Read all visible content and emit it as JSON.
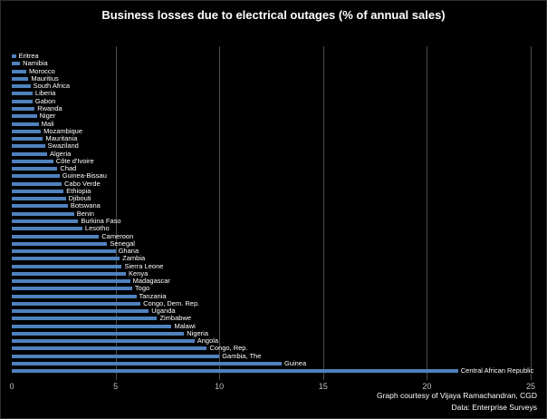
{
  "chart_data": {
    "type": "bar",
    "orientation": "horizontal",
    "title": "Business losses due to electrical outages (% of annual sales)",
    "categories": [
      "Eritrea",
      "Namibia",
      "Morocco",
      "Mauritius",
      "South Africa",
      "Liberia",
      "Gabon",
      "Rwanda",
      "Niger",
      "Mali",
      "Mozambique",
      "Mauritania",
      "Swaziland",
      "Algeria",
      "Côte d'Ivoire",
      "Chad",
      "Guinea-Bissau",
      "Cabo Verde",
      "Ethiopia",
      "Djibouti",
      "Botswana",
      "Benin",
      "Burkina Faso",
      "Lesotho",
      "Cameroon",
      "Senegal",
      "Ghana",
      "Zambia",
      "Sierra Leone",
      "Kenya",
      "Madagascar",
      "Togo",
      "Tanzania",
      "Congo, Dem. Rep.",
      "Uganda",
      "Zimbabwe",
      "Malawi",
      "Nigeria",
      "Angola",
      "Congo, Rep.",
      "Gambia, The",
      "Guinea",
      "Central African Republic"
    ],
    "values": [
      0.2,
      0.4,
      0.7,
      0.8,
      0.9,
      1.0,
      1.0,
      1.1,
      1.2,
      1.3,
      1.4,
      1.5,
      1.6,
      1.7,
      2.0,
      2.2,
      2.3,
      2.4,
      2.5,
      2.6,
      2.7,
      3.0,
      3.2,
      3.4,
      4.2,
      4.6,
      5.0,
      5.2,
      5.3,
      5.5,
      5.7,
      5.8,
      6.0,
      6.2,
      6.6,
      7.0,
      7.7,
      8.3,
      8.8,
      9.4,
      10.0,
      13.0,
      21.5
    ],
    "xlabel": "",
    "ylabel": "",
    "xlim": [
      0,
      25
    ],
    "xticks": [
      0,
      5,
      10,
      15,
      20,
      25
    ],
    "grid": true,
    "legend": "none",
    "bar_color": "#4f81bd",
    "background_color": "#000000",
    "credit_line1": "Graph courtesy of Vijaya Ramachandran, CGD",
    "credit_line2": "Data:  Enterprise Surveys"
  }
}
